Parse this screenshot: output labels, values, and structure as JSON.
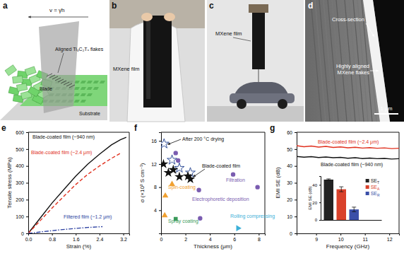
{
  "schematic_a": {
    "title": "a",
    "velocity_label": "v = γ̇h",
    "annotations": [
      "Aligned Ti₃C₂Tₓ flakes",
      "Blade",
      "Substrate"
    ]
  },
  "photo_b": {
    "title": "b",
    "annotations": [
      "MXene film"
    ]
  },
  "photo_c": {
    "title": "c",
    "annotations": [
      "MXene film"
    ]
  },
  "micrograph_d": {
    "title": "d",
    "annotations": [
      "Cross-section",
      "Highly aligned",
      "MXene flakes"
    ],
    "scale_bar": "1 μm"
  },
  "chart_data": [
    {
      "type": "line",
      "title": "e",
      "x_label": "Strain (%)",
      "y_label": "Tensile stress (MPa)",
      "xlim": [
        0,
        3.4
      ],
      "ylim": [
        0,
        600
      ],
      "xticks": [
        {
          "value": 0,
          "label": "0.0"
        },
        0.8,
        1.6,
        2.4,
        3.2
      ],
      "yticks": [
        0,
        100,
        200,
        300,
        400,
        500,
        600
      ],
      "series": [
        {
          "name": "Blade-coated film (~940 nm)",
          "color": "#111111",
          "line_style": "solid",
          "x": [
            0,
            0.4,
            0.8,
            1.2,
            1.6,
            2.0,
            2.4,
            2.8,
            3.1,
            3.3
          ],
          "values": [
            0,
            90,
            180,
            260,
            340,
            410,
            470,
            525,
            555,
            570
          ]
        },
        {
          "name": "Blade-coated film (~2.4 μm)",
          "color": "#e0301e",
          "line_style": "dashed",
          "x": [
            0,
            0.4,
            0.8,
            1.2,
            1.6,
            2.0,
            2.4,
            2.8,
            3.15
          ],
          "values": [
            0,
            75,
            150,
            220,
            290,
            350,
            400,
            445,
            480
          ]
        },
        {
          "name": "Filtered film (~1.2 μm)",
          "color": "#2b3fa0",
          "line_style": "dashdot",
          "x": [
            0,
            0.5,
            1.0,
            1.5,
            2.0,
            2.5
          ],
          "values": [
            0,
            10,
            20,
            28,
            35,
            40
          ]
        }
      ]
    },
    {
      "type": "scatter",
      "title": "f",
      "x_label": "Thickness (μm)",
      "y_label": "σ (×10³ S cm⁻¹)",
      "xlim": [
        0,
        8.5
      ],
      "ylim": [
        0,
        17.5
      ],
      "xticks": [
        0,
        2,
        4,
        6,
        8
      ],
      "yticks": [
        4,
        8,
        12,
        16
      ],
      "series": [
        {
          "name": "After 200 °C drying",
          "color": "#1f3f8f",
          "marker": "star-open",
          "x": [
            0.25,
            0.9,
            1.5,
            2.4
          ],
          "values": [
            15.5,
            12.7,
            11.3,
            10.5
          ]
        },
        {
          "name": "Blade-coated film",
          "color": "#111111",
          "marker": "star",
          "x": [
            0.2,
            0.6,
            1.0,
            1.5,
            2.2,
            2.4
          ],
          "values": [
            12,
            10.5,
            11,
            9.8,
            9.9,
            9.4
          ]
        },
        {
          "name": "Spin-coating",
          "color": "#f0a030",
          "marker": "triangle",
          "x": [
            0.3,
            0.35,
            0.9
          ],
          "values": [
            3.1,
            6.5,
            8.5
          ]
        },
        {
          "name": "Filtration",
          "color": "#7a5cb0",
          "marker": "circle",
          "x": [
            1.2,
            1.4,
            5.9,
            7.9
          ],
          "values": [
            13.9,
            12.6,
            10.2,
            8.0
          ]
        },
        {
          "name": "Electrophoretic deposition",
          "color": "#7a5cb0",
          "marker": "circle",
          "x": [
            3.1,
            3.2
          ],
          "values": [
            7.5,
            2.6
          ]
        },
        {
          "name": "Spray coating",
          "color": "#3a9a5a",
          "marker": "square",
          "x": [
            1.2
          ],
          "values": [
            2.5
          ]
        },
        {
          "name": "Rolling compressing",
          "color": "#3cb0d8",
          "marker": "triangle-right",
          "x": [
            6.3
          ],
          "values": [
            0.9
          ]
        }
      ]
    },
    {
      "type": "line",
      "title": "g",
      "x_label": "Frequency (GHz)",
      "y_label": "EMI SE (dB)",
      "xlim": [
        8.2,
        12.4
      ],
      "ylim": [
        0,
        60
      ],
      "xticks": [
        9,
        10,
        11,
        12
      ],
      "yticks": [
        0,
        10,
        20,
        30,
        40,
        50,
        60
      ],
      "series": [
        {
          "name": "Blade-coated film (~2.4 μm)",
          "color": "#e0301e",
          "line_style": "solid",
          "x": [
            8.2,
            8.5,
            8.8,
            9.1,
            9.4,
            9.7,
            10.0,
            10.3,
            10.6,
            10.9,
            11.2,
            11.5,
            11.8,
            12.1,
            12.4
          ],
          "values": [
            52,
            51.4,
            51.8,
            51.2,
            51.6,
            51,
            51.3,
            50.8,
            51.1,
            50.6,
            50.9,
            50.5,
            50.7,
            50.3,
            50.5
          ]
        },
        {
          "name": "Blade-coated film (~940 nm)",
          "color": "#111111",
          "line_style": "solid",
          "x": [
            8.2,
            8.5,
            8.8,
            9.1,
            9.4,
            9.7,
            10.0,
            10.3,
            10.6,
            10.9,
            11.2,
            11.5,
            11.8,
            12.1,
            12.4
          ],
          "values": [
            45.6,
            45.2,
            45.5,
            45,
            45.3,
            44.9,
            45.1,
            44.6,
            44.9,
            44.4,
            44.7,
            44.3,
            44.5,
            44.1,
            44.3
          ]
        }
      ]
    },
    {
      "type": "bar",
      "y_label": "EMI SE (dB)",
      "categories": [
        "SET",
        "SEA",
        "SER"
      ],
      "values": [
        46,
        35,
        12
      ],
      "errors": [
        0.8,
        2.8,
        2.6
      ],
      "colors": [
        "#222222",
        "#d9412b",
        "#3a4fa8"
      ],
      "ylim": [
        0,
        50
      ],
      "yticks": [
        0,
        20,
        40
      ],
      "legend": "right"
    }
  ]
}
